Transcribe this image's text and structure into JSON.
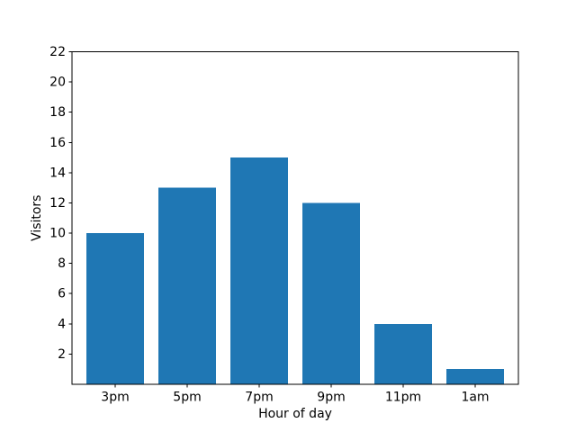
{
  "chart_data": {
    "type": "bar",
    "categories": [
      "3pm",
      "5pm",
      "7pm",
      "9pm",
      "11pm",
      "1am"
    ],
    "values": [
      10,
      13,
      15,
      12,
      4,
      1
    ],
    "title": "",
    "xlabel": "Hour of day",
    "ylabel": "Visitors",
    "ylim": [
      0,
      22
    ],
    "xlim": [
      -0.6,
      5.6
    ],
    "yticks": [
      2,
      4,
      6,
      8,
      10,
      12,
      14,
      16,
      18,
      20,
      22
    ],
    "bar_width_fraction": 0.8,
    "bar_color": "#1f77b4",
    "axis_color": "#000000",
    "background": "#ffffff",
    "grid": false,
    "legend": "none"
  }
}
